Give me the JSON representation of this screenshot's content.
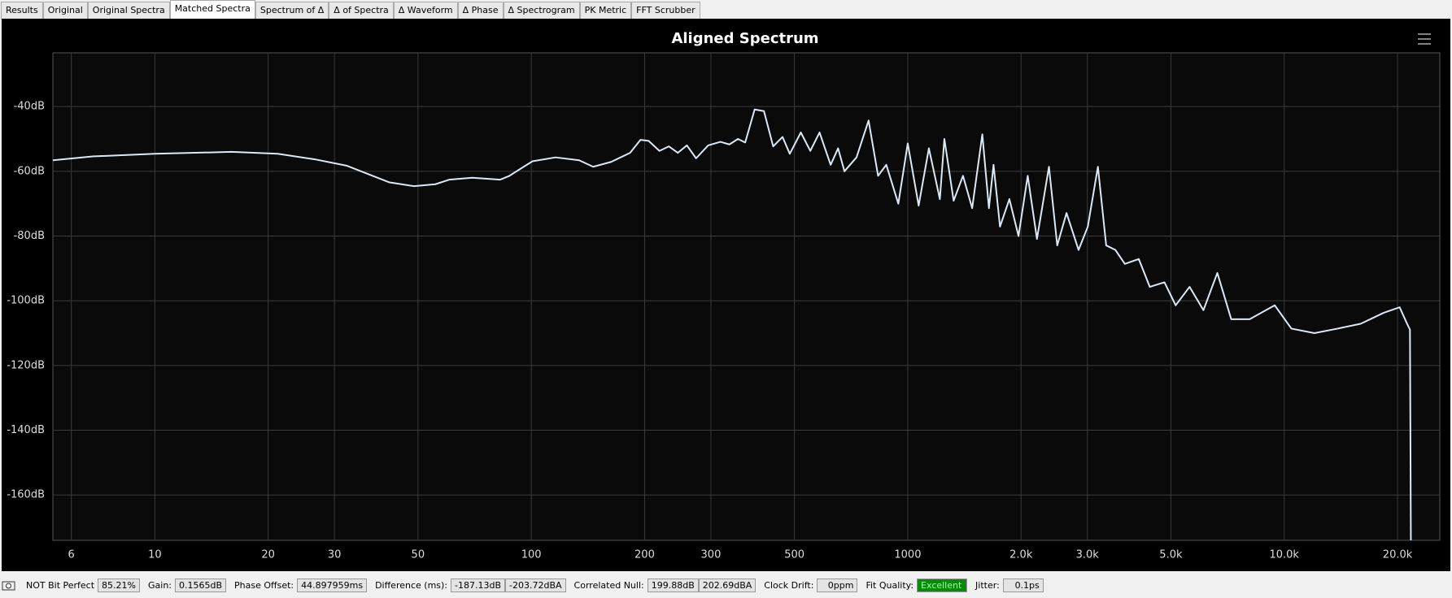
{
  "tabs": [
    "Results",
    "Original",
    "Original Spectra",
    "Matched Spectra",
    "Spectrum of Δ",
    "Δ of Spectra",
    "Δ Waveform",
    "Δ Phase",
    "Δ Spectrogram",
    "PK Metric",
    "FFT Scrubber"
  ],
  "active_tab": 3,
  "chart_data": {
    "type": "line",
    "title": "Aligned Spectrum",
    "log_x": true,
    "grid": true,
    "x": [
      5.36,
      6.84,
      10,
      16.0,
      21.2,
      26.6,
      32.4,
      41.9,
      48.8,
      55.6,
      60.5,
      69.7,
      82.6,
      87.5,
      100.7,
      116,
      134,
      146,
      163,
      183,
      195,
      205,
      219,
      232,
      245,
      259,
      274,
      295,
      318,
      336,
      354,
      370,
      392,
      415,
      439,
      465,
      486,
      520,
      551,
      583,
      624,
      653,
      679,
      731,
      787,
      834,
      877,
      944,
      1000,
      1069,
      1138,
      1217,
      1251,
      1324,
      1402,
      1483,
      1578,
      1643,
      1690,
      1758,
      1862,
      1969,
      2083,
      2204,
      2372,
      2495,
      2641,
      2843,
      3008,
      3200,
      3366,
      3562,
      3773,
      4108,
      4394,
      4807,
      5149,
      5605,
      6101,
      6643,
      7232,
      8095,
      9436,
      10450,
      12030,
      13860,
      15960,
      18390,
      20260,
      21200,
      21580,
      21700
    ],
    "series": [
      {
        "name": "Aligned Spectrum",
        "color": "#dde8f5",
        "values": [
          -56.6,
          -55.4,
          -54.6,
          -54,
          -54.6,
          -56.3,
          -58.3,
          -63.4,
          -64.6,
          -64,
          -62.6,
          -62,
          -62.6,
          -61.4,
          -56.9,
          -55.7,
          -56.6,
          -58.6,
          -57.1,
          -54.3,
          -50.3,
          -50.6,
          -53.7,
          -52.3,
          -54.3,
          -52,
          -56,
          -52,
          -50.9,
          -51.7,
          -50,
          -51.1,
          -40.9,
          -41.4,
          -52.3,
          -49.4,
          -54.6,
          -48,
          -53.7,
          -48,
          -58,
          -52.9,
          -60,
          -55.7,
          -44.3,
          -61.4,
          -58,
          -70,
          -51.4,
          -70.6,
          -52.9,
          -68.6,
          -50,
          -69.1,
          -61.4,
          -71.4,
          -48.6,
          -71.4,
          -58,
          -77.1,
          -68.6,
          -80,
          -61.4,
          -80.9,
          -58.6,
          -82.9,
          -72.9,
          -84.3,
          -77.1,
          -58.6,
          -82.9,
          -84.3,
          -88.6,
          -87.1,
          -95.7,
          -94.3,
          -101.4,
          -95.7,
          -102.9,
          -91.4,
          -105.7,
          -105.7,
          -101.4,
          -108.6,
          -110,
          -108.6,
          -107.1,
          -103.7,
          -102,
          -107.1,
          -108.9,
          -174
        ]
      }
    ],
    "xlim": [
      5.36,
      25900
    ],
    "ylim": [
      -174,
      -23.4
    ],
    "xticks": [
      6,
      10,
      20,
      30,
      50,
      100,
      200,
      300,
      500,
      1000,
      {
        "value": 2000,
        "label": "2.0k"
      },
      {
        "value": 3000,
        "label": "3.0k"
      },
      {
        "value": 5000,
        "label": "5.0k"
      },
      {
        "value": 10000,
        "label": "10.0k"
      },
      {
        "value": 20000,
        "label": "20.0k"
      }
    ],
    "yticks": [
      {
        "value": -40,
        "label": "-40dB"
      },
      {
        "value": -60,
        "label": "-60dB"
      },
      {
        "value": -80,
        "label": "-80dB"
      },
      {
        "value": -100,
        "label": "-100dB"
      },
      {
        "value": -120,
        "label": "-120dB"
      },
      {
        "value": -140,
        "label": "-140dB"
      },
      {
        "value": -160,
        "label": "-160dB"
      }
    ]
  },
  "status_bar": {
    "bit_perfect": "NOT Bit Perfect",
    "bit_perfect_value": "85.21%",
    "gain_label": "Gain:",
    "gain": "0.1565dB",
    "phase_offset_label": "Phase Offset:",
    "phase_offset": "44.897959ms",
    "difference_label": "Difference (ms):",
    "difference_db": "-187.13dB",
    "difference_dba": "-203.72dBA",
    "correlated_null_label": "Correlated Null:",
    "correlated_null_db": "199.88dB",
    "correlated_null_dba": "202.69dBA",
    "clock_drift_label": "Clock Drift:",
    "clock_drift": "0ppm",
    "fit_quality_label": "Fit Quality:",
    "fit_quality": "Excellent",
    "jitter_label": "Jitter:",
    "jitter": "0.1ps"
  }
}
